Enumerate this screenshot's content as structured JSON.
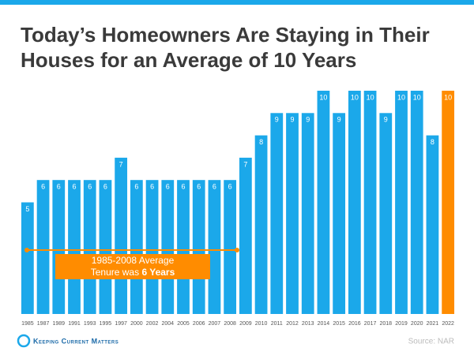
{
  "chart_data": {
    "type": "bar",
    "title_lines": [
      "Today’s Homeowners Are Staying in Their",
      "Houses for an Average of 10 Years"
    ],
    "categories": [
      "1985",
      "1987",
      "1989",
      "1991",
      "1993",
      "1995",
      "1997",
      "2000",
      "2002",
      "2004",
      "2005",
      "2006",
      "2007",
      "2008",
      "2009",
      "2010",
      "2011",
      "2012",
      "2013",
      "2014",
      "2015",
      "2016",
      "2017",
      "2018",
      "2019",
      "2020",
      "2021",
      "2022"
    ],
    "values": [
      5,
      6,
      6,
      6,
      6,
      6,
      7,
      6,
      6,
      6,
      6,
      6,
      6,
      6,
      7,
      8,
      9,
      9,
      9,
      10,
      9,
      10,
      10,
      9,
      10,
      10,
      8,
      10
    ],
    "color": "#1ba8ea",
    "highlight_category": "2022",
    "highlight_color": "#ff8c00",
    "annotation": {
      "line1": "1985-2008 Average",
      "line2": "Tenure was ",
      "line2_bold": "6 Years"
    },
    "logo": "Keeping Current Matters",
    "source": "Source: NAR"
  }
}
